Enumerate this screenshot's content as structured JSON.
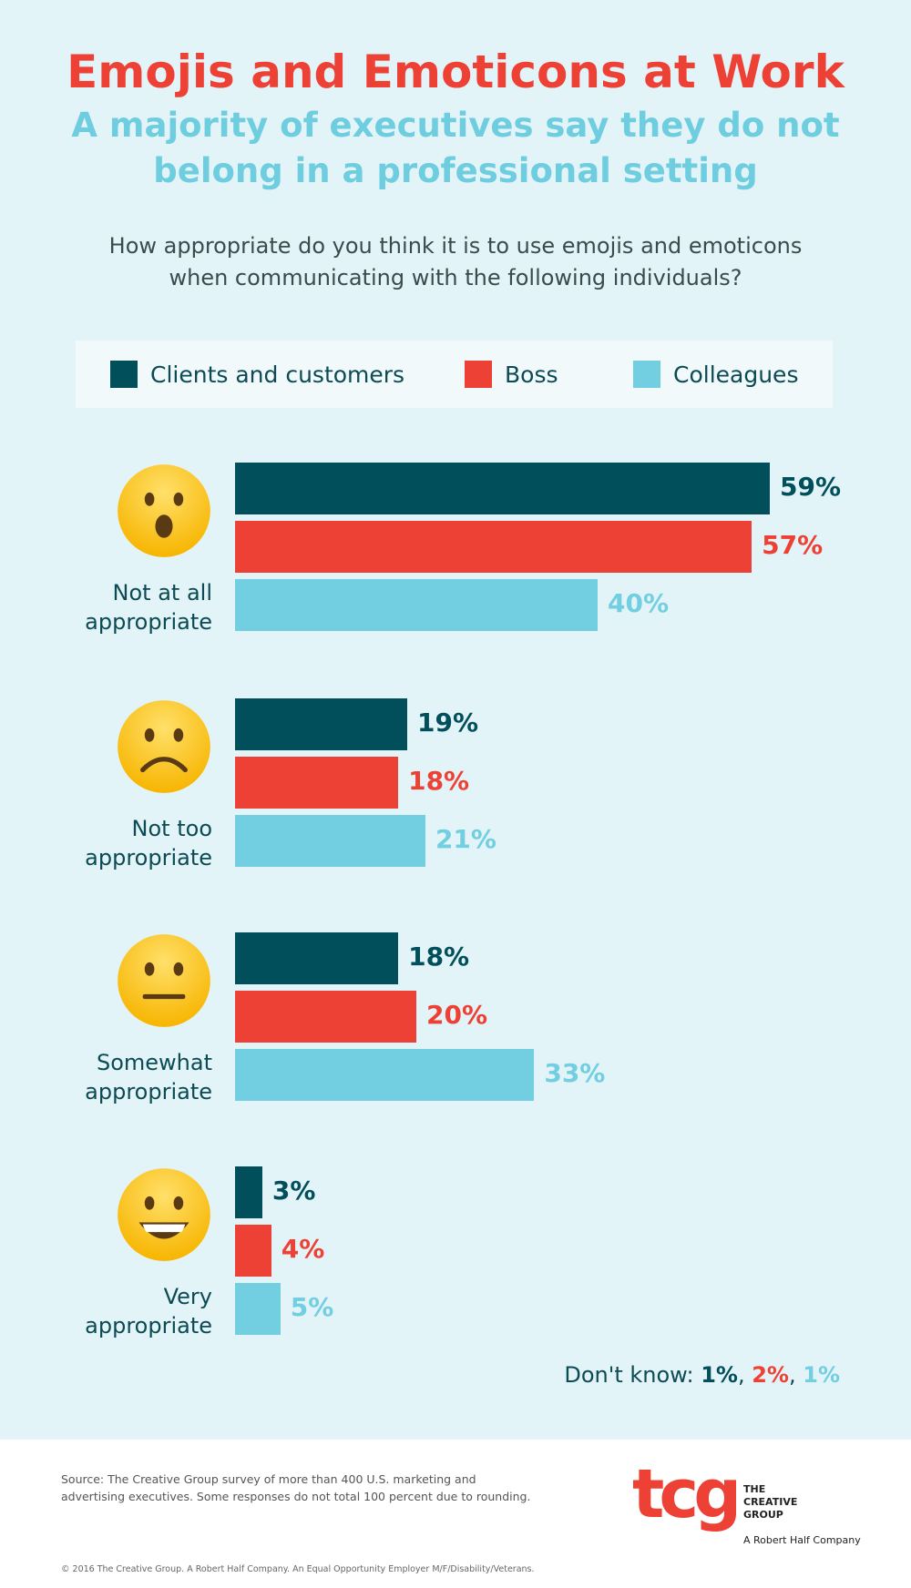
{
  "header": {
    "title": "Emojis and Emoticons at Work",
    "subtitle_line1": "A majority of executives say they do not",
    "subtitle_line2": "belong in a professional setting",
    "question_line1": "How appropriate do you think it is to use emojis and emoticons",
    "question_line2": "when communicating with the following individuals?"
  },
  "chart_data": {
    "type": "bar",
    "orientation": "horizontal",
    "categories": [
      "Not at all appropriate",
      "Not too appropriate",
      "Somewhat appropriate",
      "Very appropriate"
    ],
    "category_lines": [
      [
        "Not at all",
        "appropriate"
      ],
      [
        "Not too",
        "appropriate"
      ],
      [
        "Somewhat",
        "appropriate"
      ],
      [
        "Very",
        "appropriate"
      ]
    ],
    "emoji_icons": [
      "astonished-face-icon",
      "frowning-face-icon",
      "neutral-face-icon",
      "grinning-face-icon"
    ],
    "series": [
      {
        "name": "Clients and customers",
        "color": "#004F5B",
        "values": [
          59,
          19,
          18,
          3
        ]
      },
      {
        "name": "Boss",
        "color": "#EE4135",
        "values": [
          57,
          18,
          20,
          4
        ]
      },
      {
        "name": "Colleagues",
        "color": "#72CEE1",
        "values": [
          40,
          21,
          33,
          5
        ]
      }
    ],
    "value_labels": [
      [
        "59%",
        "19%",
        "18%",
        "3%"
      ],
      [
        "57%",
        "18%",
        "20%",
        "4%"
      ],
      [
        "40%",
        "21%",
        "33%",
        "5%"
      ]
    ],
    "legend_position": "top",
    "grid": false,
    "dont_know": {
      "label": "Don't know:",
      "values": [
        "1%",
        "2%",
        "1%"
      ]
    }
  },
  "footer": {
    "source_line1": "Source: The Creative Group survey of more than 400 U.S. marketing and",
    "source_line2": "advertising executives. Some responses do not total 100 percent due to rounding.",
    "copyright": "© 2016 The Creative Group. A Robert Half Company. An Equal Opportunity Employer M/F/Disability/Veterans.",
    "logo_text": "tcg",
    "logo_name1": "THE",
    "logo_name2": "CREATIVE",
    "logo_name3": "GROUP",
    "logo_tagline": "A Robert Half Company"
  }
}
